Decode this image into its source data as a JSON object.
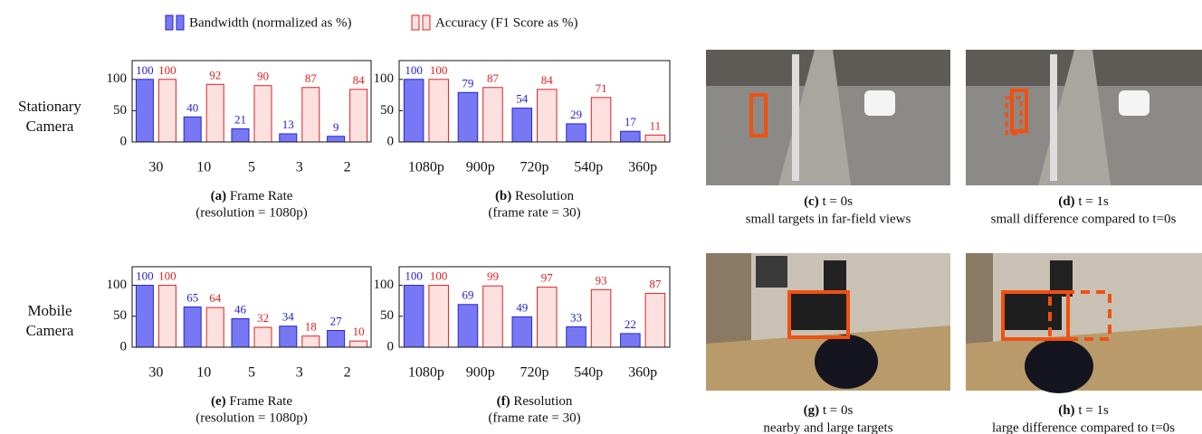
{
  "legend": [
    {
      "name": "Bandwidth (normalized as %)",
      "color": "#7878f4",
      "edge": "#2525d0",
      "label_color": "#2222cc"
    },
    {
      "name": "Accuracy (F1 Score as %)",
      "color": "#fde1e1",
      "edge": "#e02222",
      "label_color": "#dd2222"
    }
  ],
  "row_labels": [
    [
      "Stationary",
      "Camera"
    ],
    [
      "Mobile",
      "Camera"
    ]
  ],
  "chart_data": [
    {
      "type": "bar",
      "tag": "(a)",
      "title": "Frame Rate",
      "subtitle": "(resolution = 1080p)",
      "categories": [
        "30",
        "10",
        "5",
        "3",
        "2"
      ],
      "ylim": [
        0,
        130
      ],
      "yticks": [
        0,
        50,
        100
      ],
      "series": [
        {
          "values": [
            100,
            40,
            21,
            13,
            9
          ]
        },
        {
          "values": [
            100,
            92,
            90,
            87,
            84
          ]
        }
      ]
    },
    {
      "type": "bar",
      "tag": "(b)",
      "title": "Resolution",
      "subtitle": "(frame rate = 30)",
      "categories": [
        "1080p",
        "900p",
        "720p",
        "540p",
        "360p"
      ],
      "ylim": [
        0,
        130
      ],
      "yticks": [
        0,
        50,
        100
      ],
      "series": [
        {
          "values": [
            100,
            79,
            54,
            29,
            17
          ]
        },
        {
          "values": [
            100,
            87,
            84,
            71,
            11
          ]
        }
      ]
    },
    {
      "type": "bar",
      "tag": "(e)",
      "title": "Frame Rate",
      "subtitle": "(resolution = 1080p)",
      "categories": [
        "30",
        "10",
        "5",
        "3",
        "2"
      ],
      "ylim": [
        0,
        130
      ],
      "yticks": [
        0,
        50,
        100
      ],
      "series": [
        {
          "values": [
            100,
            65,
            46,
            34,
            27
          ]
        },
        {
          "values": [
            100,
            64,
            32,
            18,
            10
          ]
        }
      ]
    },
    {
      "type": "bar",
      "tag": "(f)",
      "title": "Resolution",
      "subtitle": "(frame rate = 30)",
      "categories": [
        "1080p",
        "900p",
        "720p",
        "540p",
        "360p"
      ],
      "ylim": [
        0,
        130
      ],
      "yticks": [
        0,
        50,
        100
      ],
      "series": [
        {
          "values": [
            100,
            69,
            49,
            33,
            22
          ]
        },
        {
          "values": [
            100,
            99,
            97,
            93,
            87
          ]
        }
      ]
    }
  ],
  "photos": [
    {
      "tag": "(c)",
      "caption": "t = 0s",
      "description": "small targets in far-field views"
    },
    {
      "tag": "(d)",
      "caption": "t = 1s",
      "description": "small difference compared to t=0s"
    },
    {
      "tag": "(g)",
      "caption": "t = 0s",
      "description": "nearby and large targets"
    },
    {
      "tag": "(h)",
      "caption": "t = 1s",
      "description": "large difference compared to t=0s"
    }
  ]
}
